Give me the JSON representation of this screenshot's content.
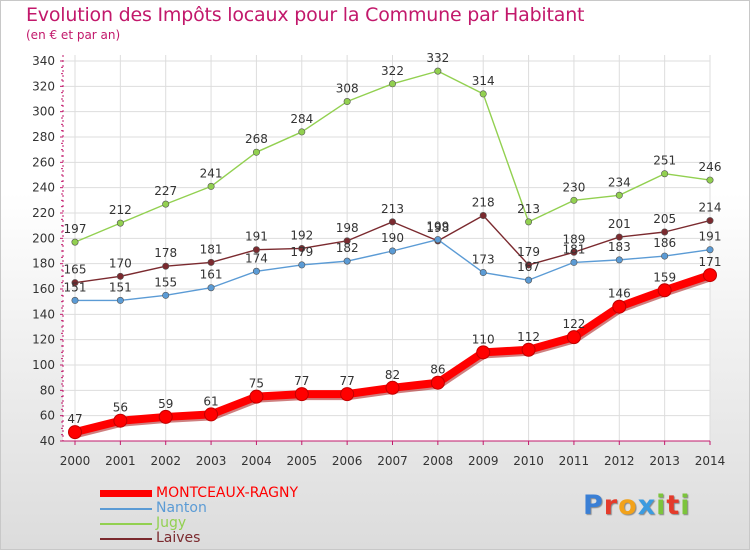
{
  "title": "Evolution des Impôts locaux pour la Commune par Habitant",
  "subtitle": "(en € et par an)",
  "brand": {
    "letters": [
      "P",
      "r",
      "o",
      "x",
      "i",
      "t",
      "i"
    ],
    "colors": [
      "#3a7fd5",
      "#e43b2b",
      "#f2a21a",
      "#3b9be0",
      "#7cc43c",
      "#e43b2b",
      "#7cc43c"
    ]
  },
  "chart_data": {
    "type": "line",
    "x": [
      "2000",
      "2001",
      "2002",
      "2003",
      "2004",
      "2005",
      "2006",
      "2007",
      "2008",
      "2009",
      "2010",
      "2011",
      "2012",
      "2013",
      "2014"
    ],
    "ylim": [
      40,
      340
    ],
    "yticks": [
      "40",
      "60",
      "80",
      "100",
      "120",
      "140",
      "160",
      "180",
      "200",
      "220",
      "240",
      "260",
      "280",
      "300",
      "320",
      "340"
    ],
    "grid": true,
    "legend_position": "bottom-left",
    "series": [
      {
        "name": "MONTCEAUX-RAGNY",
        "color": "#ff0000",
        "values": [
          47,
          56,
          59,
          61,
          75,
          77,
          77,
          82,
          86,
          110,
          112,
          122,
          146,
          159,
          171
        ],
        "labels": [
          "47",
          "56",
          "59",
          "61",
          "75",
          "77",
          "77",
          "82",
          "86",
          "110",
          "112",
          "122",
          "146",
          "159",
          "171"
        ]
      },
      {
        "name": "Nanton",
        "color": "#5b9bd5",
        "values": [
          151,
          151,
          155,
          161,
          174,
          179,
          182,
          190,
          199,
          173,
          167,
          181,
          183,
          186,
          191
        ],
        "labels": [
          "151",
          "151",
          "155",
          "161",
          "174",
          "179",
          "182",
          "190",
          "199",
          "173",
          "167",
          "181",
          "183",
          "186",
          "191"
        ]
      },
      {
        "name": "Jugy",
        "color": "#92d050",
        "values": [
          197,
          212,
          227,
          241,
          268,
          284,
          308,
          322,
          332,
          314,
          213,
          230,
          234,
          251,
          246
        ],
        "labels": [
          "197",
          "212",
          "227",
          "241",
          "268",
          "284",
          "308",
          "322",
          "332",
          "314",
          "213",
          "230",
          "234",
          "251",
          "246"
        ]
      },
      {
        "name": "Laives",
        "color": "#7b2a2f",
        "values": [
          165,
          170,
          178,
          181,
          191,
          192,
          198,
          213,
          198,
          218,
          179,
          189,
          201,
          205,
          214
        ],
        "labels": [
          "165",
          "170",
          "178",
          "181",
          "191",
          "192",
          "198",
          "213",
          "198",
          "218",
          "179",
          "189",
          "201",
          "205",
          "214"
        ]
      }
    ]
  }
}
